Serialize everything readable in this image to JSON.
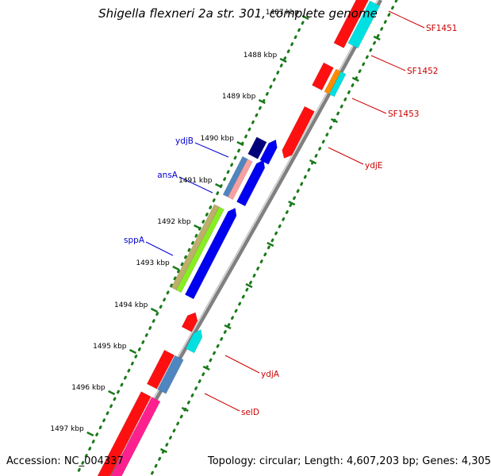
{
  "header": {
    "title": "Shigella flexneri 2a str. 301, complete genome"
  },
  "footer": {
    "accession": "Accession: NC_004337",
    "topology": "Topology: circular; Length: 4,607,203 bp; Genes: 4,305"
  },
  "colors": {
    "backbone": "#808080",
    "tick": "#1a7a1a",
    "gene_red": "#ff1010",
    "gene_cyan": "#00e0e0",
    "gene_navy": "#00007a",
    "gene_blue": "#0000f0",
    "gene_steel": "#4f86c0",
    "gene_pink": "#f7a0a0",
    "gene_olive": "#bcb06a",
    "gene_lime": "#88ee22",
    "gene_orange": "#ff8c00",
    "gene_magenta": "#ff2090",
    "label_blue": "#0000cc",
    "label_red": "#cc0000"
  },
  "scale": {
    "labels": [
      "1487 kbp",
      "1488 kbp",
      "1489 kbp",
      "1490 kbp",
      "1491 kbp",
      "1492 kbp",
      "1493 kbp",
      "1494 kbp",
      "1495 kbp",
      "1496 kbp",
      "1497 kbp"
    ]
  },
  "genes": {
    "blue_labels": [
      "ydjB",
      "ansA",
      "sppA"
    ],
    "red_labels": [
      "SF1451",
      "SF1452",
      "SF1453",
      "ydjE",
      "ydjA",
      "selD"
    ]
  }
}
